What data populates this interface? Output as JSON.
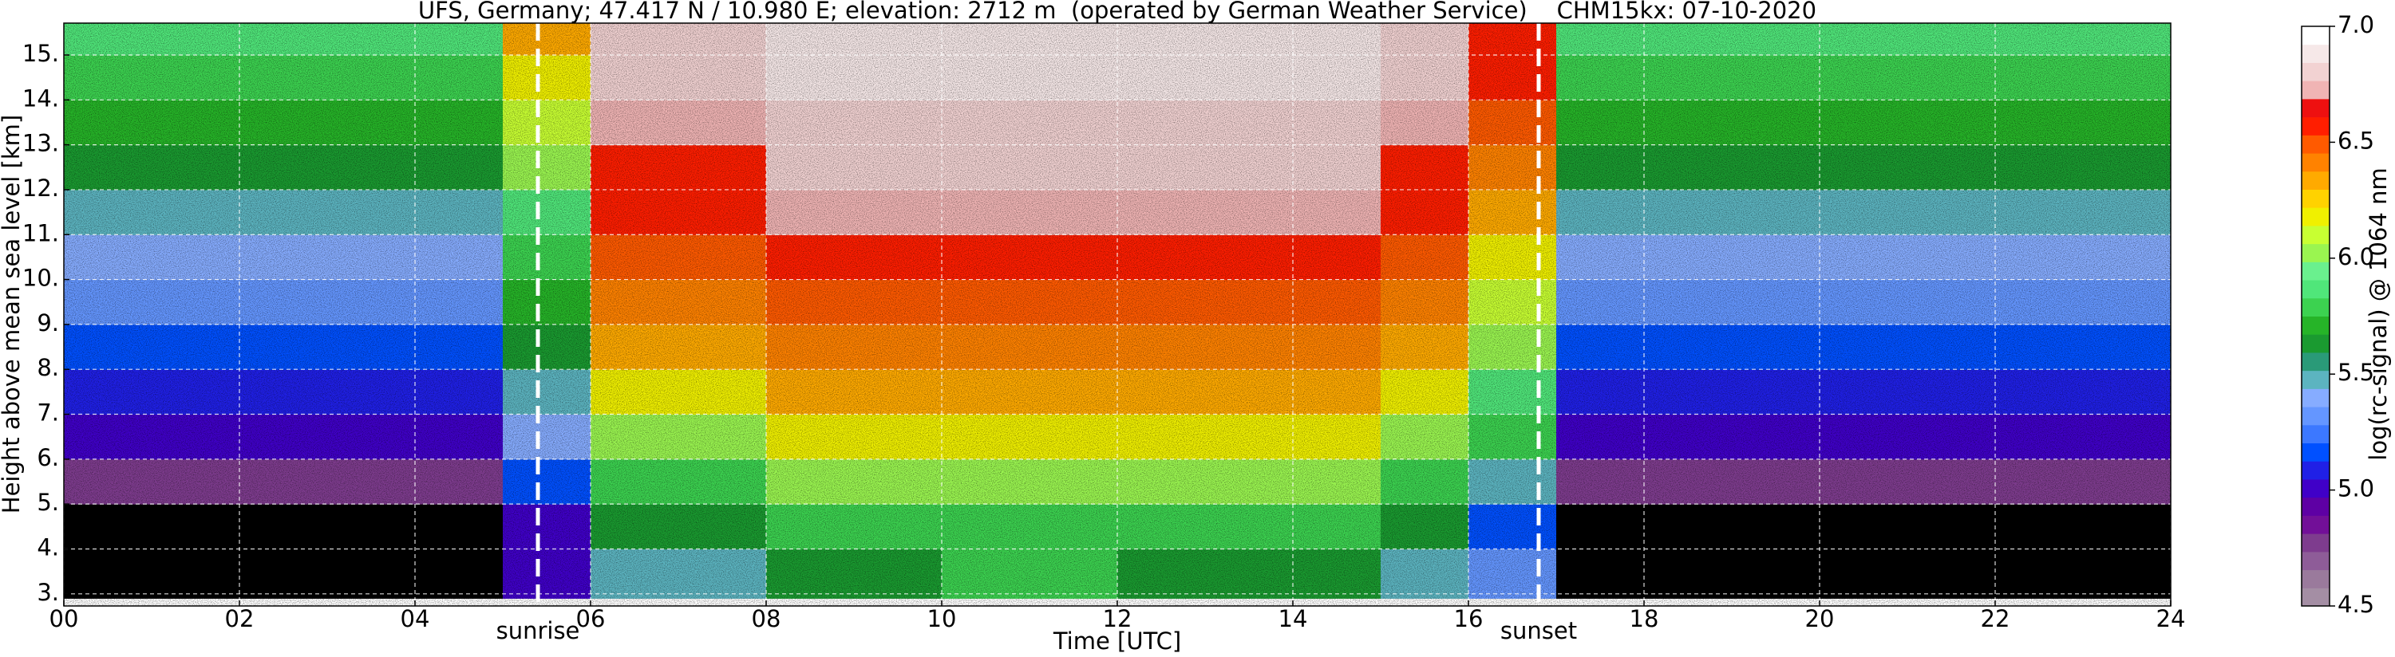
{
  "chart_data": {
    "type": "heatmap",
    "title": "UFS, Germany; 47.417 N / 10.980 E; elevation: 2712 m  (operated by German Weather Service)    CHM15kx: 07-10-2020",
    "xlabel": "Time [UTC]",
    "ylabel": "Height above mean sea level [km]",
    "zlabel": "log(rc-signal) @ 1064 nm",
    "xlim": [
      0,
      24
    ],
    "xticks": [
      {
        "value": 0,
        "label": "00"
      },
      {
        "value": 2,
        "label": "02"
      },
      {
        "value": 4,
        "label": "04"
      },
      {
        "value": 6,
        "label": "06"
      },
      {
        "value": 8,
        "label": "08"
      },
      10,
      12,
      14,
      16,
      18,
      20,
      22,
      24
    ],
    "ylim": [
      2.73,
      15.71
    ],
    "yticks": [
      {
        "value": 3,
        "label": "3."
      },
      {
        "value": 4,
        "label": "4."
      },
      {
        "value": 5,
        "label": "5."
      },
      {
        "value": 6,
        "label": "6."
      },
      {
        "value": 7,
        "label": "7."
      },
      {
        "value": 8,
        "label": "8."
      },
      {
        "value": 9,
        "label": "9."
      },
      {
        "value": 10,
        "label": "10."
      },
      {
        "value": 11,
        "label": "11."
      },
      {
        "value": 12,
        "label": "12."
      },
      {
        "value": 13,
        "label": "13."
      },
      {
        "value": 14,
        "label": "14."
      },
      {
        "value": 15,
        "label": "15."
      }
    ],
    "zlim": [
      4.5,
      7.0
    ],
    "zticks": [
      4.5,
      {
        "value": 5,
        "label": "5.0"
      },
      5.5,
      {
        "value": 6,
        "label": "6.0"
      },
      6.5,
      {
        "value": 7,
        "label": "7.0"
      }
    ],
    "grid": true,
    "under_color": "#000000",
    "colorscale": [
      "#a48ea4",
      "#9a7a9c",
      "#8e5c98",
      "#7e3c8e",
      "#720f98",
      "#5e00a4",
      "#4000c8",
      "#2020e6",
      "#0050ff",
      "#3c78ff",
      "#6496ff",
      "#86acff",
      "#5cb4c0",
      "#2a9a78",
      "#1a9a30",
      "#26b428",
      "#3cd250",
      "#50e67a",
      "#6af08e",
      "#9af550",
      "#c8ff32",
      "#f0f000",
      "#ffd200",
      "#ffaa00",
      "#ff8200",
      "#ff5a00",
      "#ff1e00",
      "#ee1010",
      "#f0b4b4",
      "#f2d2d2",
      "#f6e8e8",
      "#ffffff"
    ],
    "annotations": [
      {
        "text": "sunrise",
        "x": 5.4
      },
      {
        "text": "sunset",
        "x": 16.8
      }
    ],
    "x_edges": [
      0,
      1,
      2,
      3,
      4,
      5,
      6,
      7,
      8,
      9,
      10,
      11,
      12,
      13,
      14,
      15,
      16,
      17,
      18,
      19,
      20,
      21,
      22,
      23,
      24
    ],
    "y_edges": [
      2.9,
      4,
      5,
      6,
      7,
      8,
      9,
      10,
      11,
      12,
      13,
      14,
      15,
      15.71
    ],
    "z": [
      [
        4.3,
        4.3,
        4.3,
        4.3,
        4.3,
        5.0,
        5.5,
        5.5,
        5.6,
        5.6,
        5.8,
        5.8,
        5.6,
        5.6,
        5.6,
        5.5,
        5.3,
        4.3,
        4.3,
        4.3,
        4.3,
        4.3,
        4.3,
        4.3
      ],
      [
        4.4,
        4.4,
        4.4,
        4.4,
        4.4,
        5.0,
        5.6,
        5.6,
        5.8,
        5.8,
        5.8,
        5.8,
        5.8,
        5.8,
        5.8,
        5.6,
        5.2,
        4.4,
        4.4,
        4.4,
        4.4,
        4.4,
        4.4,
        4.4
      ],
      [
        4.8,
        4.8,
        4.8,
        4.8,
        4.8,
        5.2,
        5.8,
        5.8,
        6.0,
        6.0,
        6.0,
        6.0,
        6.0,
        6.0,
        6.0,
        5.8,
        5.5,
        4.8,
        4.8,
        4.8,
        4.8,
        4.8,
        4.8,
        4.8
      ],
      [
        5.0,
        5.0,
        5.0,
        5.0,
        5.0,
        5.4,
        6.0,
        6.0,
        6.2,
        6.2,
        6.2,
        6.2,
        6.2,
        6.2,
        6.2,
        6.0,
        5.8,
        5.0,
        5.0,
        5.0,
        5.0,
        5.0,
        5.0,
        5.0
      ],
      [
        5.1,
        5.1,
        5.1,
        5.1,
        5.1,
        5.5,
        6.2,
        6.2,
        6.3,
        6.3,
        6.3,
        6.3,
        6.3,
        6.3,
        6.3,
        6.2,
        5.9,
        5.1,
        5.1,
        5.1,
        5.1,
        5.1,
        5.1,
        5.1
      ],
      [
        5.2,
        5.2,
        5.2,
        5.2,
        5.2,
        5.6,
        6.3,
        6.3,
        6.4,
        6.4,
        6.4,
        6.4,
        6.4,
        6.4,
        6.4,
        6.3,
        6.0,
        5.2,
        5.2,
        5.2,
        5.2,
        5.2,
        5.2,
        5.2
      ],
      [
        5.3,
        5.3,
        5.3,
        5.3,
        5.3,
        5.7,
        6.4,
        6.4,
        6.5,
        6.5,
        6.5,
        6.5,
        6.5,
        6.5,
        6.5,
        6.4,
        6.1,
        5.3,
        5.3,
        5.3,
        5.3,
        5.3,
        5.3,
        5.3
      ],
      [
        5.4,
        5.4,
        5.4,
        5.4,
        5.4,
        5.8,
        6.5,
        6.5,
        6.6,
        6.6,
        6.6,
        6.6,
        6.6,
        6.6,
        6.6,
        6.5,
        6.2,
        5.4,
        5.4,
        5.4,
        5.4,
        5.4,
        5.4,
        5.4
      ],
      [
        5.5,
        5.5,
        5.5,
        5.5,
        5.5,
        5.9,
        6.6,
        6.6,
        6.7,
        6.7,
        6.7,
        6.7,
        6.7,
        6.7,
        6.7,
        6.6,
        6.3,
        5.5,
        5.5,
        5.5,
        5.5,
        5.5,
        5.5,
        5.5
      ],
      [
        5.6,
        5.6,
        5.6,
        5.6,
        5.6,
        6.0,
        6.6,
        6.6,
        6.8,
        6.8,
        6.8,
        6.8,
        6.8,
        6.8,
        6.8,
        6.6,
        6.4,
        5.6,
        5.6,
        5.6,
        5.6,
        5.6,
        5.6,
        5.6
      ],
      [
        5.7,
        5.7,
        5.7,
        5.7,
        5.7,
        6.1,
        6.7,
        6.7,
        6.8,
        6.8,
        6.8,
        6.8,
        6.8,
        6.8,
        6.8,
        6.7,
        6.5,
        5.7,
        5.7,
        5.7,
        5.7,
        5.7,
        5.7,
        5.7
      ],
      [
        5.8,
        5.8,
        5.8,
        5.8,
        5.8,
        6.2,
        6.8,
        6.8,
        6.9,
        6.9,
        6.9,
        6.9,
        6.9,
        6.9,
        6.9,
        6.8,
        6.6,
        5.8,
        5.8,
        5.8,
        5.8,
        5.8,
        5.8,
        5.8
      ],
      [
        5.9,
        5.9,
        5.9,
        5.9,
        5.9,
        6.3,
        6.8,
        6.8,
        6.9,
        6.9,
        6.9,
        6.9,
        6.9,
        6.9,
        6.9,
        6.8,
        6.6,
        5.9,
        5.9,
        5.9,
        5.9,
        5.9,
        5.9,
        5.9
      ]
    ]
  }
}
